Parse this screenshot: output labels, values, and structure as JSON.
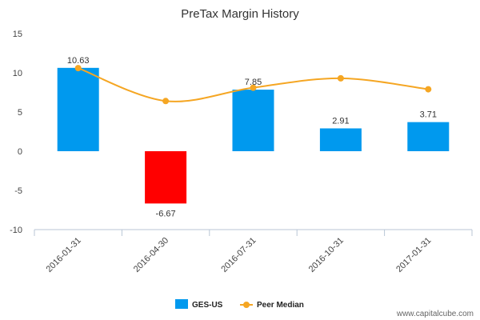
{
  "chart_data": {
    "type": "bar",
    "title": "PreTax Margin History",
    "categories": [
      "2016-01-31",
      "2016-04-30",
      "2016-07-31",
      "2016-10-31",
      "2017-01-31"
    ],
    "series": [
      {
        "name": "GES-US",
        "kind": "bar",
        "values": [
          10.63,
          -6.67,
          7.85,
          2.91,
          3.71
        ],
        "labels": [
          "10.63",
          "-6.67",
          "7.85",
          "2.91",
          "3.71"
        ],
        "color": "#0099ee",
        "negative_color": "#ff0000"
      },
      {
        "name": "Peer Median",
        "kind": "line",
        "values": [
          10.6,
          6.4,
          8.1,
          9.3,
          7.9
        ],
        "color": "#f5a623"
      }
    ],
    "ylim": [
      -10,
      15
    ],
    "yticks": [
      15,
      10,
      5,
      0,
      -5,
      -10
    ],
    "legend_position": "bottom"
  },
  "footer": "www.capitalcube.com"
}
